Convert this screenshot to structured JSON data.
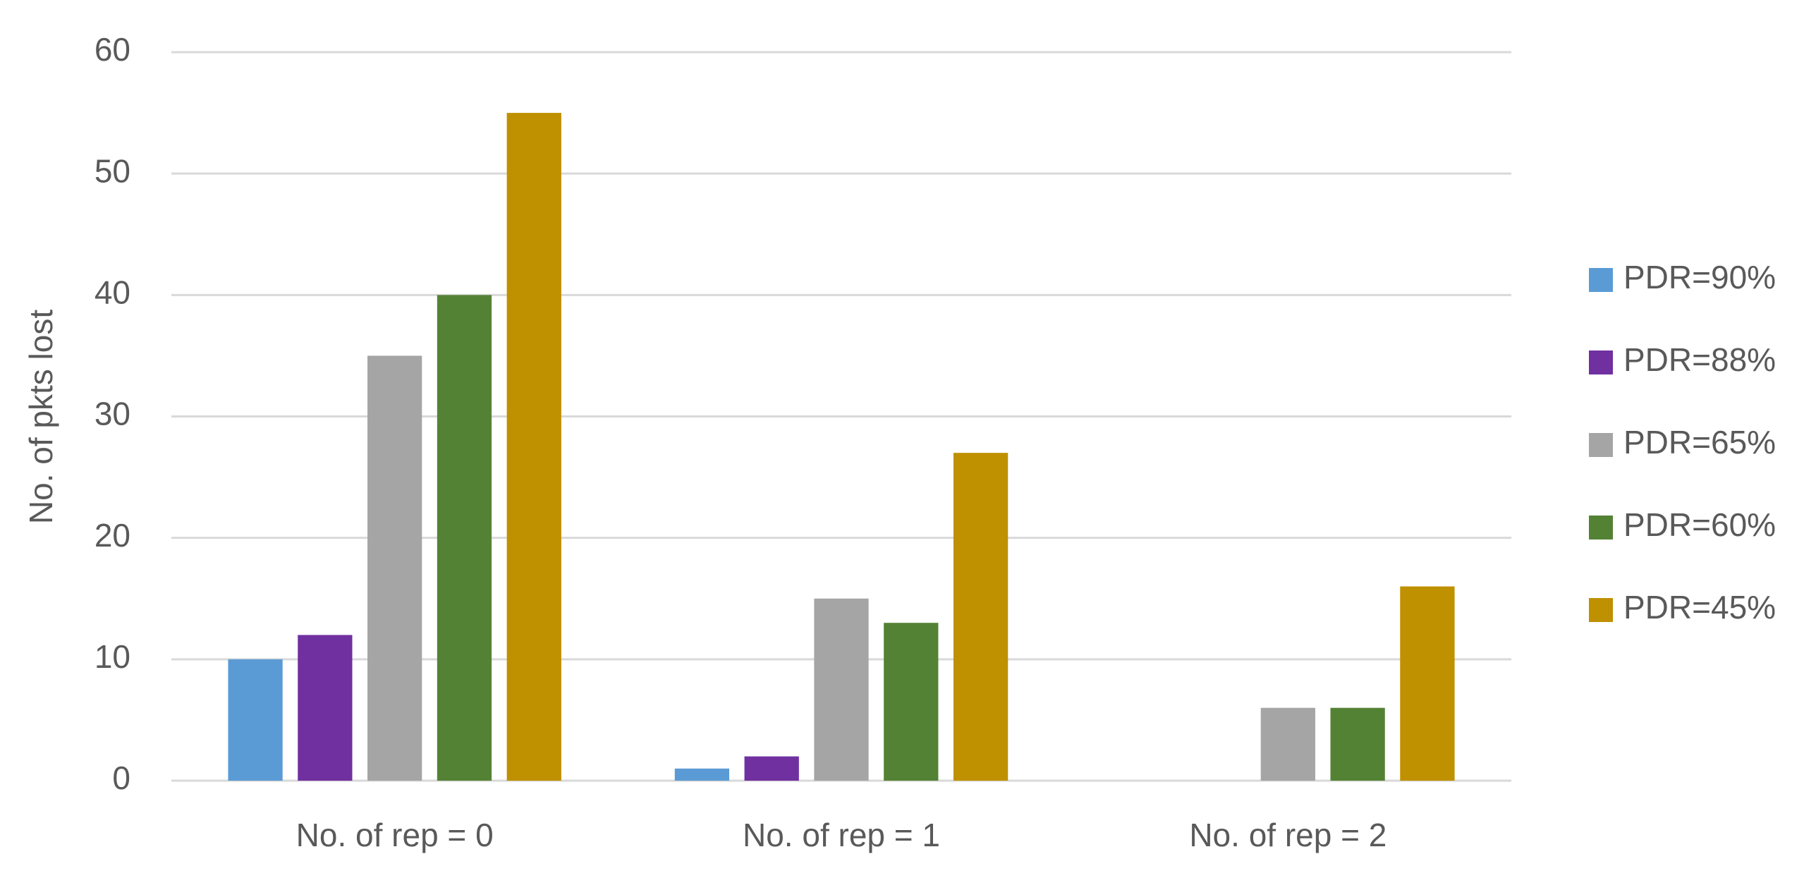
{
  "chart_data": {
    "type": "bar",
    "y_label": "No. of pkts lost",
    "categories": [
      "No. of rep = 0",
      "No. of rep = 1",
      "No. of rep = 2"
    ],
    "series": [
      {
        "name": "PDR=90%",
        "color": "#5b9bd5",
        "values": [
          10,
          1,
          0
        ]
      },
      {
        "name": "PDR=88%",
        "color": "#7030a0",
        "values": [
          12,
          2,
          0
        ]
      },
      {
        "name": "PDR=65%",
        "color": "#a5a5a5",
        "values": [
          35,
          15,
          6
        ]
      },
      {
        "name": "PDR=60%",
        "color": "#548235",
        "values": [
          40,
          13,
          6
        ]
      },
      {
        "name": "PDR=45%",
        "color": "#bf9000",
        "values": [
          55,
          27,
          16
        ]
      }
    ],
    "ylim": [
      0,
      60
    ],
    "yticks": [
      0,
      10,
      20,
      30,
      40,
      50,
      60
    ],
    "grid": true,
    "legend": "right"
  }
}
